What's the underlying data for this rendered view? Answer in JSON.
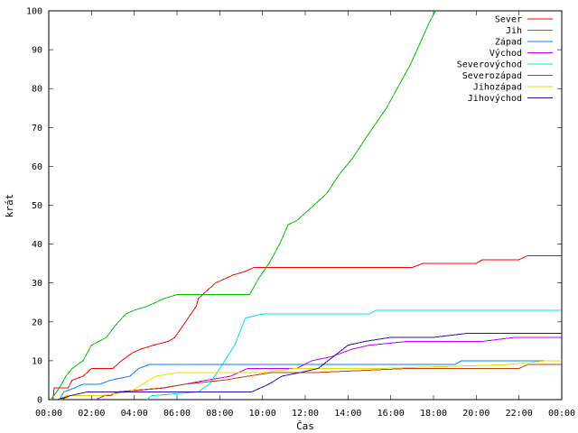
{
  "chart_data": {
    "type": "line",
    "title": "",
    "xlabel": "Čas",
    "ylabel": "krát",
    "xlim": [
      0,
      24
    ],
    "ylim": [
      0,
      100
    ],
    "x_ticks": [
      0,
      2,
      4,
      6,
      8,
      10,
      12,
      14,
      16,
      18,
      20,
      22,
      24
    ],
    "x_tick_labels": [
      "00:00",
      "02:00",
      "04:00",
      "06:00",
      "08:00",
      "10:00",
      "12:00",
      "14:00",
      "16:00",
      "18:00",
      "20:00",
      "22:00",
      "00:00"
    ],
    "y_ticks": [
      0,
      10,
      20,
      30,
      40,
      50,
      60,
      70,
      80,
      90,
      100
    ],
    "legend_position": "top-right",
    "grid": false,
    "series": [
      {
        "name": "Sever",
        "color": "#ff0000",
        "points": [
          [
            0.2,
            0
          ],
          [
            0.25,
            3
          ],
          [
            0.9,
            3
          ],
          [
            1.1,
            5
          ],
          [
            1.6,
            6
          ],
          [
            2.0,
            8
          ],
          [
            3.0,
            8
          ],
          [
            3.4,
            10
          ],
          [
            3.9,
            12
          ],
          [
            4.3,
            13
          ],
          [
            4.9,
            14
          ],
          [
            5.6,
            15
          ],
          [
            5.9,
            16
          ],
          [
            6.4,
            20
          ],
          [
            6.9,
            24
          ],
          [
            7.0,
            26
          ],
          [
            7.4,
            28
          ],
          [
            7.8,
            30
          ],
          [
            8.2,
            31
          ],
          [
            8.6,
            32
          ],
          [
            9.2,
            33
          ],
          [
            9.6,
            34
          ],
          [
            12,
            34
          ],
          [
            14,
            34
          ],
          [
            17,
            34
          ],
          [
            17.5,
            35
          ],
          [
            20,
            35
          ],
          [
            20.3,
            36
          ],
          [
            22,
            36
          ],
          [
            22.4,
            37
          ],
          [
            24,
            37
          ]
        ]
      },
      {
        "name": "Jih",
        "color": "#00c000",
        "points": [
          [
            0.1,
            0
          ],
          [
            0.5,
            3
          ],
          [
            0.8,
            6
          ],
          [
            1.1,
            8
          ],
          [
            1.6,
            10
          ],
          [
            2.0,
            14
          ],
          [
            2.7,
            16
          ],
          [
            3.1,
            19
          ],
          [
            3.6,
            22
          ],
          [
            4.0,
            23
          ],
          [
            4.6,
            24
          ],
          [
            5.4,
            26
          ],
          [
            6.0,
            27
          ],
          [
            9.4,
            27
          ],
          [
            9.8,
            31
          ],
          [
            10.3,
            35
          ],
          [
            10.8,
            40
          ],
          [
            11.2,
            45
          ],
          [
            11.6,
            46
          ],
          [
            12.4,
            50
          ],
          [
            13.0,
            53
          ],
          [
            13.6,
            58
          ],
          [
            14.2,
            62
          ],
          [
            14.8,
            67
          ],
          [
            15.3,
            71
          ],
          [
            15.8,
            75
          ],
          [
            16.4,
            81
          ],
          [
            16.9,
            86
          ],
          [
            17.4,
            92
          ],
          [
            17.8,
            97
          ],
          [
            18.1,
            100
          ]
        ]
      },
      {
        "name": "Západ",
        "color": "#0080ff",
        "points": [
          [
            0.5,
            0
          ],
          [
            0.7,
            2
          ],
          [
            1.2,
            3
          ],
          [
            1.6,
            4
          ],
          [
            2.4,
            4
          ],
          [
            2.9,
            5
          ],
          [
            3.8,
            6
          ],
          [
            4.2,
            8
          ],
          [
            4.7,
            9
          ],
          [
            14,
            9
          ],
          [
            19,
            9
          ],
          [
            19.3,
            10
          ],
          [
            24,
            10
          ]
        ]
      },
      {
        "name": "Východ",
        "color": "#c000ff",
        "points": [
          [
            2.2,
            0
          ],
          [
            2.6,
            1
          ],
          [
            3.4,
            2
          ],
          [
            5.4,
            3
          ],
          [
            7.4,
            5
          ],
          [
            8.5,
            6
          ],
          [
            9.3,
            8
          ],
          [
            11.6,
            8
          ],
          [
            12.3,
            10
          ],
          [
            13.2,
            11
          ],
          [
            14.2,
            13
          ],
          [
            15.0,
            14
          ],
          [
            16.8,
            15
          ],
          [
            20.3,
            15
          ],
          [
            21.8,
            16
          ],
          [
            24,
            16
          ]
        ]
      },
      {
        "name": "Severovýchod",
        "color": "#00e0e0",
        "points": [
          [
            4.6,
            0
          ],
          [
            4.8,
            1
          ],
          [
            7.0,
            2
          ],
          [
            7.5,
            4
          ],
          [
            8.0,
            8
          ],
          [
            8.7,
            14
          ],
          [
            9.2,
            21
          ],
          [
            10,
            22
          ],
          [
            15,
            22
          ],
          [
            15.3,
            23
          ],
          [
            24,
            23
          ]
        ]
      },
      {
        "name": "Severozápad",
        "color": "#c04000",
        "points": [
          [
            0.6,
            0
          ],
          [
            1.0,
            1
          ],
          [
            2.9,
            1
          ],
          [
            3.2,
            2
          ],
          [
            5.3,
            3
          ],
          [
            6.4,
            4
          ],
          [
            8.2,
            5
          ],
          [
            9.3,
            6
          ],
          [
            10.5,
            7
          ],
          [
            12.6,
            7
          ],
          [
            16.8,
            8
          ],
          [
            18.5,
            8
          ],
          [
            22,
            8
          ],
          [
            22.4,
            9
          ],
          [
            24,
            9
          ]
        ]
      },
      {
        "name": "Jihozápad",
        "color": "#e0e000",
        "points": [
          [
            0.5,
            0
          ],
          [
            0.8,
            1
          ],
          [
            2.4,
            1
          ],
          [
            3.8,
            2
          ],
          [
            4.4,
            4
          ],
          [
            5.0,
            6
          ],
          [
            6.1,
            7
          ],
          [
            10.0,
            7
          ],
          [
            11.5,
            8
          ],
          [
            15.5,
            8
          ],
          [
            21.5,
            9
          ],
          [
            23.3,
            10
          ],
          [
            24,
            10
          ]
        ]
      },
      {
        "name": "Jihovýchod",
        "color": "#3010a0",
        "points": [
          [
            0.4,
            0
          ],
          [
            1.0,
            1
          ],
          [
            1.8,
            2
          ],
          [
            2.6,
            2
          ],
          [
            5.2,
            2
          ],
          [
            9.5,
            2
          ],
          [
            10.3,
            4
          ],
          [
            10.9,
            6
          ],
          [
            11.8,
            7
          ],
          [
            12.6,
            8
          ],
          [
            13.3,
            11
          ],
          [
            14.0,
            14
          ],
          [
            14.8,
            15
          ],
          [
            16.0,
            16
          ],
          [
            18.0,
            16
          ],
          [
            19.5,
            17
          ],
          [
            24,
            17
          ]
        ]
      }
    ]
  }
}
